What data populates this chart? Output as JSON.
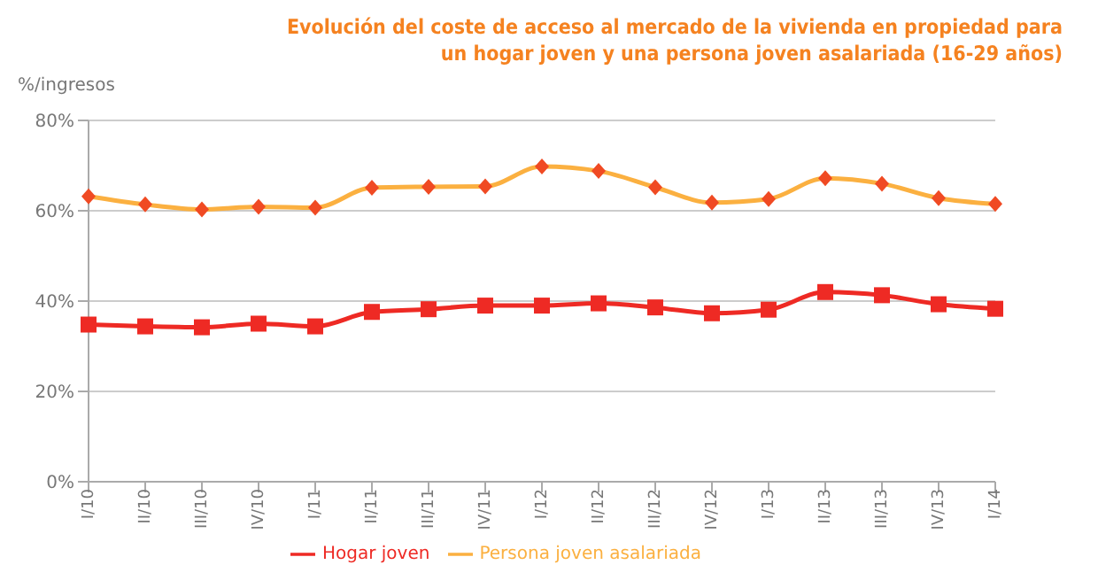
{
  "chart_data": {
    "type": "line",
    "title": "Evolución del coste de acceso al mercado de la vivienda en propiedad para un hogar joven y una persona joven asalariada (16-29 años)",
    "ylabel": "%/ingresos",
    "categories": [
      "I/10",
      "II/10",
      "III/10",
      "IV/10",
      "I/11",
      "II/11",
      "III/11",
      "IV/11",
      "I/12",
      "II/12",
      "III/12",
      "IV/12",
      "I/13",
      "II/13",
      "III/13",
      "IV/13",
      "I/14"
    ],
    "series": [
      {
        "name": "Persona joven asalariada",
        "color": "#fbb040",
        "marker": "diamond",
        "values": [
          63.2,
          61.4,
          60.3,
          60.9,
          60.7,
          65.1,
          65.3,
          65.4,
          69.8,
          68.8,
          65.2,
          61.8,
          62.6,
          67.2,
          66.0,
          62.8,
          61.5
        ]
      },
      {
        "name": "Hogar joven",
        "color": "#ee2a24",
        "marker": "square",
        "values": [
          34.8,
          34.4,
          34.2,
          35.0,
          34.4,
          37.6,
          38.2,
          39.0,
          39.0,
          39.5,
          38.6,
          37.3,
          38.1,
          42.0,
          41.3,
          39.3,
          38.3
        ]
      }
    ],
    "ylim": [
      0,
      80
    ],
    "yticks": [
      {
        "value": 0,
        "label": "0%"
      },
      {
        "value": 20,
        "label": "20%"
      },
      {
        "value": 40,
        "label": "40%"
      },
      {
        "value": 60,
        "label": "60%"
      },
      {
        "value": 80,
        "label": "80%"
      }
    ],
    "grid": "y",
    "legend": "bottom",
    "line_style": "solid"
  }
}
